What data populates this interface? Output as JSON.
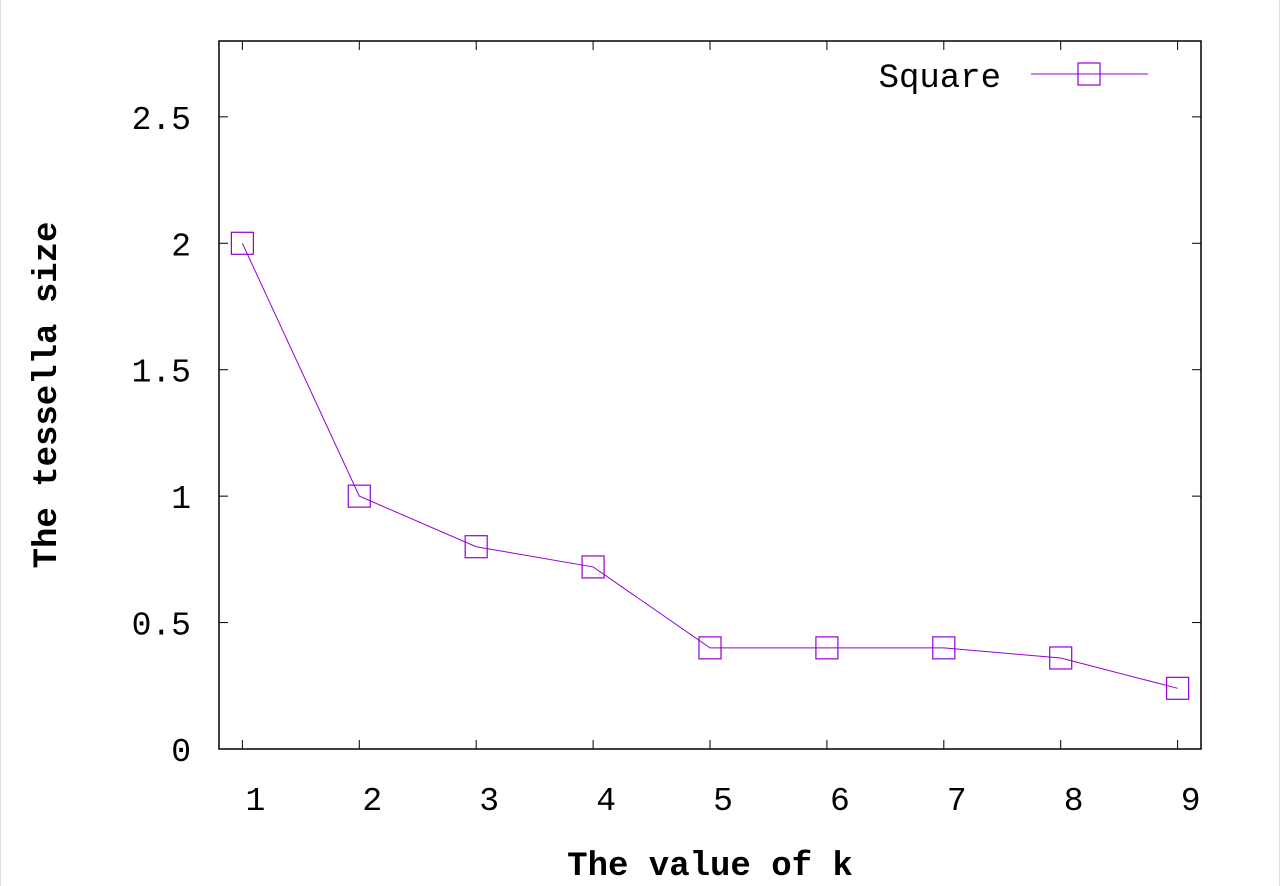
{
  "chart_data": {
    "type": "line",
    "title": "",
    "xlabel": "The value of k",
    "ylabel": "The tessella size",
    "x": [
      1,
      2,
      3,
      4,
      5,
      6,
      7,
      8,
      9
    ],
    "series": [
      {
        "name": "Square",
        "values": [
          2,
          1,
          0.8,
          0.72,
          0.4,
          0.4,
          0.4,
          0.36,
          0.24
        ],
        "color": "#9400d3",
        "marker": "open-square"
      }
    ],
    "xlim": [
      0.8,
      9.2
    ],
    "ylim": [
      0,
      2.8
    ],
    "xticks": [
      "1",
      "2",
      "3",
      "4",
      "5",
      "6",
      "7",
      "8",
      "9"
    ],
    "yticks": [
      "0",
      "0.5",
      "1",
      "1.5",
      "2",
      "2.5"
    ],
    "ytick_values": [
      0,
      0.5,
      1,
      1.5,
      2,
      2.5
    ],
    "grid": false,
    "legend_position": "top-right"
  }
}
